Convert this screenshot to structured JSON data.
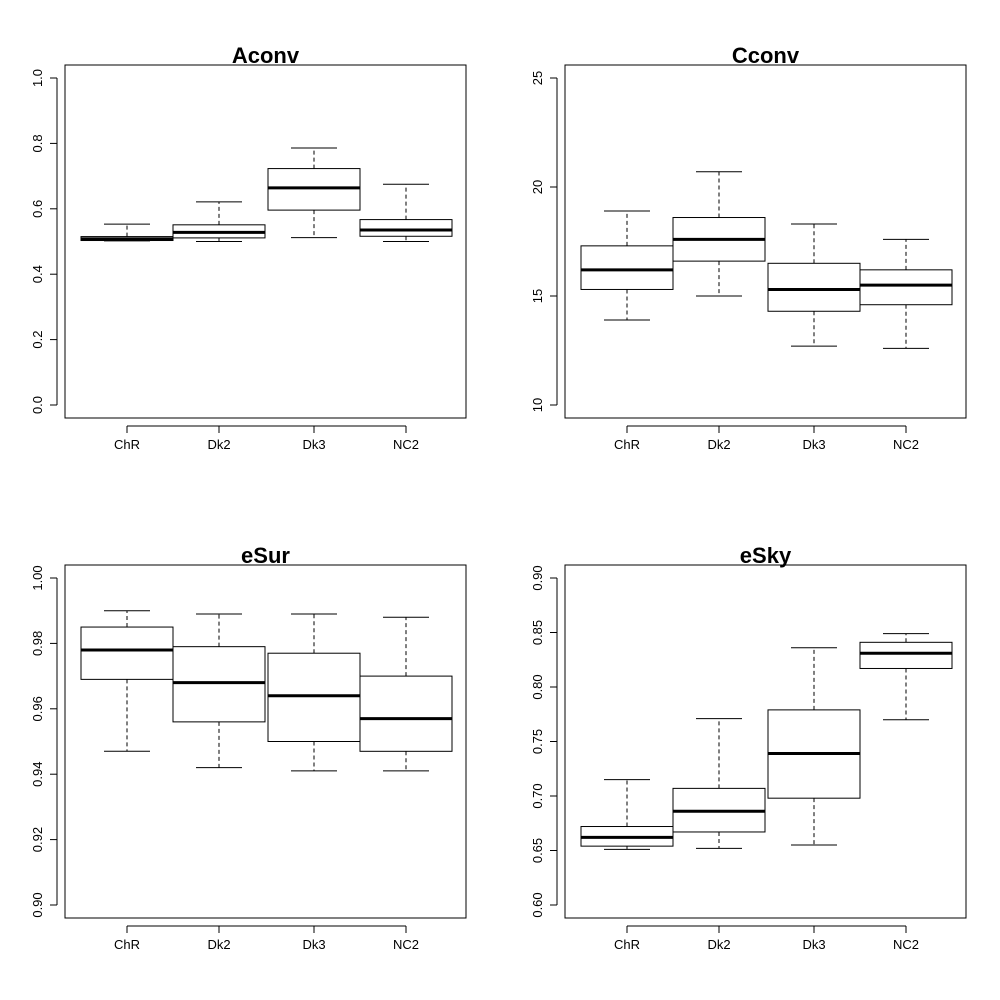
{
  "chart_data": [
    {
      "type": "boxplot",
      "title": "Aconv",
      "categories": [
        "ChR",
        "Dk2",
        "Dk3",
        "NC2"
      ],
      "ylim": [
        0.0,
        1.0
      ],
      "yticks": [
        0.0,
        0.2,
        0.4,
        0.6,
        0.8,
        1.0
      ],
      "ytick_labels": [
        "0.0",
        "0.2",
        "0.4",
        "0.6",
        "0.8",
        "1.0"
      ],
      "boxes": [
        {
          "min": 0.502,
          "q1": 0.503,
          "median": 0.508,
          "q3": 0.515,
          "max": 0.553
        },
        {
          "min": 0.5,
          "q1": 0.511,
          "median": 0.528,
          "q3": 0.551,
          "max": 0.621
        },
        {
          "min": 0.512,
          "q1": 0.596,
          "median": 0.664,
          "q3": 0.723,
          "max": 0.786
        },
        {
          "min": 0.5,
          "q1": 0.516,
          "median": 0.535,
          "q3": 0.567,
          "max": 0.675
        }
      ]
    },
    {
      "type": "boxplot",
      "title": "Cconv",
      "categories": [
        "ChR",
        "Dk2",
        "Dk3",
        "NC2"
      ],
      "ylim": [
        10,
        25
      ],
      "yticks": [
        10,
        15,
        20,
        25
      ],
      "ytick_labels": [
        "10",
        "15",
        "20",
        "25"
      ],
      "boxes": [
        {
          "min": 13.9,
          "q1": 15.3,
          "median": 16.2,
          "q3": 17.3,
          "max": 18.9
        },
        {
          "min": 15.0,
          "q1": 16.6,
          "median": 17.6,
          "q3": 18.6,
          "max": 20.7
        },
        {
          "min": 12.7,
          "q1": 14.3,
          "median": 15.3,
          "q3": 16.5,
          "max": 18.3
        },
        {
          "min": 12.6,
          "q1": 14.6,
          "median": 15.5,
          "q3": 16.2,
          "max": 17.6
        }
      ]
    },
    {
      "type": "boxplot",
      "title": "eSur",
      "categories": [
        "ChR",
        "Dk2",
        "Dk3",
        "NC2"
      ],
      "ylim": [
        0.9,
        1.0
      ],
      "yticks": [
        0.9,
        0.92,
        0.94,
        0.96,
        0.98,
        1.0
      ],
      "ytick_labels": [
        "0.90",
        "0.92",
        "0.94",
        "0.96",
        "0.98",
        "1.00"
      ],
      "boxes": [
        {
          "min": 0.947,
          "q1": 0.969,
          "median": 0.978,
          "q3": 0.985,
          "max": 0.99
        },
        {
          "min": 0.942,
          "q1": 0.956,
          "median": 0.968,
          "q3": 0.979,
          "max": 0.989
        },
        {
          "min": 0.941,
          "q1": 0.95,
          "median": 0.964,
          "q3": 0.977,
          "max": 0.989
        },
        {
          "min": 0.941,
          "q1": 0.947,
          "median": 0.957,
          "q3": 0.97,
          "max": 0.988
        }
      ]
    },
    {
      "type": "boxplot",
      "title": "eSky",
      "categories": [
        "ChR",
        "Dk2",
        "Dk3",
        "NC2"
      ],
      "ylim": [
        0.6,
        0.9
      ],
      "yticks": [
        0.6,
        0.65,
        0.7,
        0.75,
        0.8,
        0.85,
        0.9
      ],
      "ytick_labels": [
        "0.60",
        "0.65",
        "0.70",
        "0.75",
        "0.80",
        "0.85",
        "0.90"
      ],
      "boxes": [
        {
          "min": 0.651,
          "q1": 0.654,
          "median": 0.662,
          "q3": 0.672,
          "max": 0.715
        },
        {
          "min": 0.652,
          "q1": 0.667,
          "median": 0.686,
          "q3": 0.707,
          "max": 0.771
        },
        {
          "min": 0.655,
          "q1": 0.698,
          "median": 0.739,
          "q3": 0.779,
          "max": 0.836
        },
        {
          "min": 0.77,
          "q1": 0.817,
          "median": 0.831,
          "q3": 0.841,
          "max": 0.849
        }
      ]
    }
  ]
}
